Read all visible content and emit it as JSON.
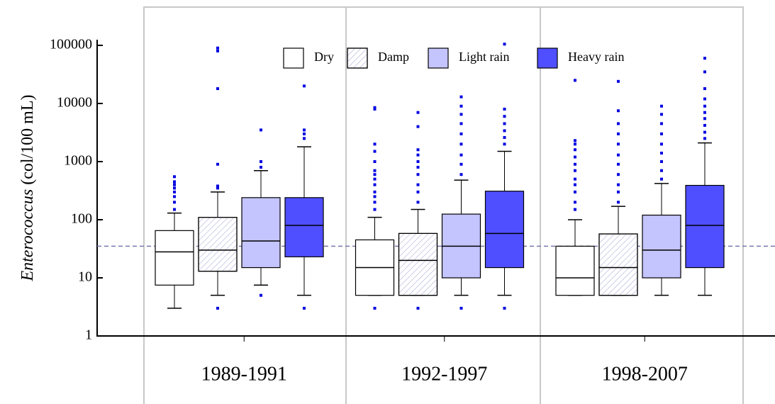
{
  "chart_data": {
    "type": "box",
    "log_scale": true,
    "y_label": {
      "italic": "Enterococcus",
      "rest": "(col/100 mL)"
    },
    "categories": [
      "1989-1991",
      "1992-1997",
      "1998-2007"
    ],
    "ylim": [
      1,
      100000
    ],
    "yticks": [
      1,
      10,
      100,
      1000,
      10000,
      100000
    ],
    "reference_line": 35,
    "series": [
      {
        "name": "Dry",
        "color": "#ffffff",
        "hatch": false,
        "values": [
          {
            "low": 3,
            "q1": 7.5,
            "median": 28,
            "q3": 65,
            "high": 130,
            "outliers": [
              150,
              200,
              250,
              300,
              350,
              400,
              450,
              550
            ]
          },
          {
            "low": 5,
            "q1": 5,
            "median": 15,
            "q3": 45,
            "high": 110,
            "outliers": [
              3,
              150,
              200,
              250,
              300,
              400,
              500,
              600,
              700,
              1000,
              1500,
              2000,
              8000,
              8500
            ]
          },
          {
            "low": 5,
            "q1": 5,
            "median": 10,
            "q3": 35,
            "high": 100,
            "outliers": [
              150,
              200,
              300,
              400,
              500,
              700,
              900,
              1200,
              1600,
              2000,
              2300,
              25000
            ]
          }
        ]
      },
      {
        "name": "Damp",
        "color": "#ffffff",
        "hatch": true,
        "values": [
          {
            "low": 5,
            "q1": 13,
            "median": 30,
            "q3": 110,
            "high": 300,
            "outliers": [
              3,
              350,
              380,
              900,
              18000,
              80000,
              90000
            ]
          },
          {
            "low": 5,
            "q1": 5,
            "median": 20,
            "q3": 58,
            "high": 150,
            "outliers": [
              3,
              200,
              300,
              400,
              600,
              800,
              1000,
              1300,
              1600,
              4000,
              7000
            ]
          },
          {
            "low": 5,
            "q1": 5,
            "median": 15,
            "q3": 57,
            "high": 170,
            "outliers": [
              200,
              300,
              400,
              600,
              900,
              1300,
              2000,
              3000,
              4500,
              7500,
              24000
            ]
          }
        ]
      },
      {
        "name": "Light rain",
        "color": "#c4c4ff",
        "hatch": false,
        "values": [
          {
            "low": 7.5,
            "q1": 15,
            "median": 43,
            "q3": 240,
            "high": 700,
            "outliers": [
              5,
              800,
              1000,
              3500
            ]
          },
          {
            "low": 5,
            "q1": 10,
            "median": 35,
            "q3": 125,
            "high": 480,
            "outliers": [
              3,
              600,
              900,
              1300,
              2000,
              3000,
              4500,
              6500,
              9000,
              13000
            ]
          },
          {
            "low": 5,
            "q1": 10,
            "median": 30,
            "q3": 120,
            "high": 420,
            "outliers": [
              500,
              700,
              1000,
              1400,
              2000,
              3000,
              4500,
              6500,
              9000
            ]
          }
        ]
      },
      {
        "name": "Heavy rain",
        "color": "#4f4fff",
        "hatch": false,
        "values": [
          {
            "low": 5,
            "q1": 23,
            "median": 80,
            "q3": 240,
            "high": 1800,
            "outliers": [
              3,
              2500,
              3000,
              3500,
              20000
            ]
          },
          {
            "low": 5,
            "q1": 15,
            "median": 58,
            "q3": 310,
            "high": 1500,
            "outliers": [
              3,
              2000,
              2600,
              3400,
              4500,
              6000,
              8000,
              105000
            ]
          },
          {
            "low": 5,
            "q1": 15,
            "median": 80,
            "q3": 390,
            "high": 2100,
            "outliers": [
              2500,
              3200,
              4200,
              5500,
              7000,
              9000,
              12000,
              18000,
              35000,
              60000
            ]
          }
        ]
      }
    ]
  }
}
